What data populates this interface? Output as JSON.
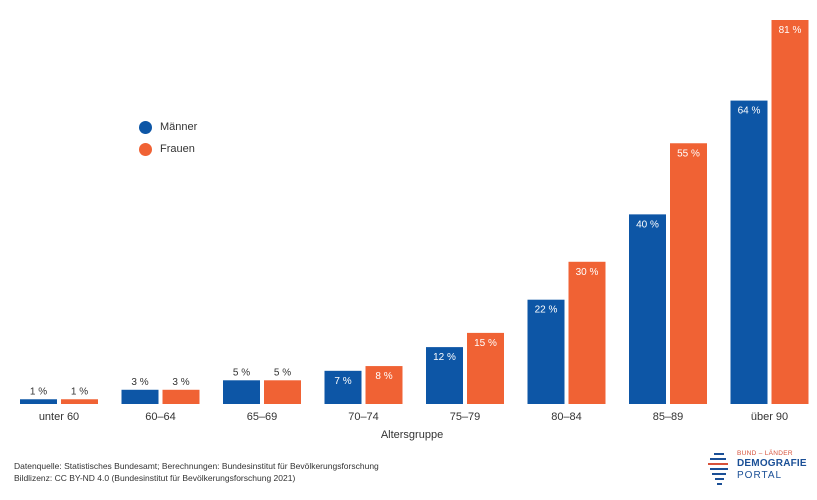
{
  "chart_data": {
    "type": "bar",
    "categories": [
      "unter 60",
      "60–64",
      "65–69",
      "70–74",
      "75–79",
      "80–84",
      "85–89",
      "über 90"
    ],
    "series": [
      {
        "name": "Männer",
        "color": "#0d56a6",
        "values": [
          1,
          3,
          5,
          7,
          12,
          22,
          40,
          64
        ],
        "labels": [
          "1 %",
          "3 %",
          "5 %",
          "7 %",
          "12 %",
          "22 %",
          "40 %",
          "64 %"
        ]
      },
      {
        "name": "Frauen",
        "color": "#f06234",
        "values": [
          1,
          3,
          5,
          8,
          15,
          30,
          55,
          81
        ],
        "labels": [
          "1 %",
          "3 %",
          "5 %",
          "8 %",
          "15 %",
          "30 %",
          "55 %",
          "81 %"
        ]
      }
    ],
    "xlabel": "Altersgruppe",
    "ylabel": "",
    "ylim": [
      0,
      81
    ],
    "grid": false,
    "legend_position": "top-left"
  },
  "footer": {
    "source": "Datenquelle: Statistisches Bundesamt; Berechnungen: Bundesinstitut für Bevölkerungsforschung",
    "license": "Bildlizenz: CC BY-ND 4.0 (Bundesinstitut für Bevölkerungsforschung 2021)"
  },
  "logo": {
    "line1": "BUND – LÄNDER",
    "line2": "DEMOGRAFIE",
    "line3": "PORTAL"
  }
}
